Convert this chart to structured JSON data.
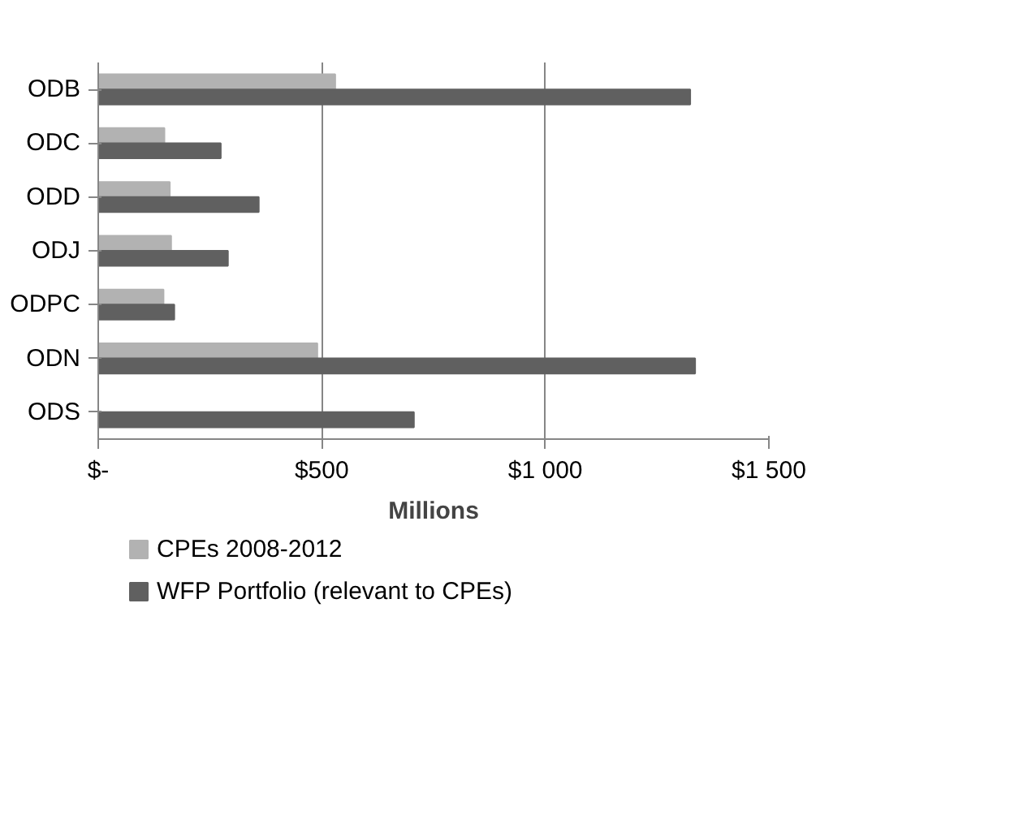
{
  "chart_data": {
    "type": "bar",
    "orientation": "horizontal",
    "xlabel": "Millions",
    "categories": [
      "ODB",
      "ODC",
      "ODD",
      "ODJ",
      "ODPC",
      "ODN",
      "ODS"
    ],
    "series": [
      {
        "name": "CPEs 2008-2012",
        "color": "#b2b2b2",
        "values": [
          530,
          148,
          160,
          163,
          146,
          490,
          null
        ]
      },
      {
        "name": "WFP Portfolio (relevant to CPEs)",
        "color": "#606060",
        "values": [
          1324,
          274,
          359,
          290,
          170,
          1335,
          706
        ]
      }
    ],
    "xlim": [
      0,
      1500
    ],
    "xticks": [
      {
        "value": 0,
        "label": "$-"
      },
      {
        "value": 500,
        "label": "$500"
      },
      {
        "value": 1000,
        "label": "$1 000"
      },
      {
        "value": 1500,
        "label": "$1 500"
      }
    ],
    "grid": "x",
    "legend": "bottom"
  }
}
